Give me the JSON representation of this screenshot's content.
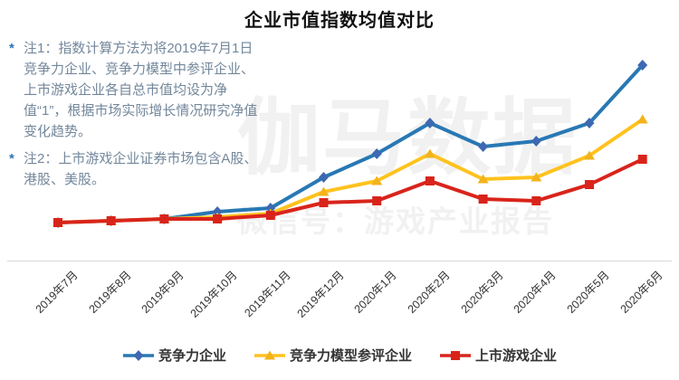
{
  "title": "企业市值指数均值对比",
  "notes": [
    {
      "marker": "*",
      "text": "注1：指数计算方法为将2019年7月1日竞争力企业、竞争力模型中参评企业、上市游戏企业各自总市值均设为净值“1”，根据市场实际增长情况研究净值变化趋势。"
    },
    {
      "marker": "*",
      "text": "注2：上市游戏企业证券市场包含A股、港股、美股。"
    }
  ],
  "watermark": {
    "line1": "伽马数据",
    "line2": "微信号：游戏产业报告"
  },
  "chart_data": {
    "type": "line",
    "title": "企业市值指数均值对比",
    "categories": [
      "2019年7月",
      "2019年8月",
      "2019年9月",
      "2019年10月",
      "2019年11月",
      "2019年12月",
      "2020年1月",
      "2020年2月",
      "2020年3月",
      "2020年4月",
      "2020年5月",
      "2020年6月"
    ],
    "baseline_value": 1,
    "ylim": [
      0.85,
      2.0
    ],
    "grid": false,
    "legend_position": "bottom",
    "axis_color": "#d8d8d8",
    "series": [
      {
        "name": "竞争力企业",
        "color": "#2878B4",
        "marker_color": "#3D68B2",
        "marker": "diamond",
        "values": [
          1.0,
          1.01,
          1.02,
          1.06,
          1.08,
          1.25,
          1.38,
          1.55,
          1.42,
          1.45,
          1.55,
          1.87
        ]
      },
      {
        "name": "竞争力模型参评企业",
        "color": "#FFC21E",
        "marker_color": "#F2B31B",
        "marker": "triangle",
        "values": [
          1.0,
          1.01,
          1.02,
          1.03,
          1.05,
          1.17,
          1.23,
          1.38,
          1.24,
          1.25,
          1.37,
          1.57
        ]
      },
      {
        "name": "上市游戏企业",
        "color": "#D9241B",
        "marker_color": "#D9241B",
        "marker": "square",
        "values": [
          1.0,
          1.01,
          1.02,
          1.02,
          1.04,
          1.11,
          1.12,
          1.23,
          1.13,
          1.12,
          1.21,
          1.35
        ]
      }
    ]
  }
}
